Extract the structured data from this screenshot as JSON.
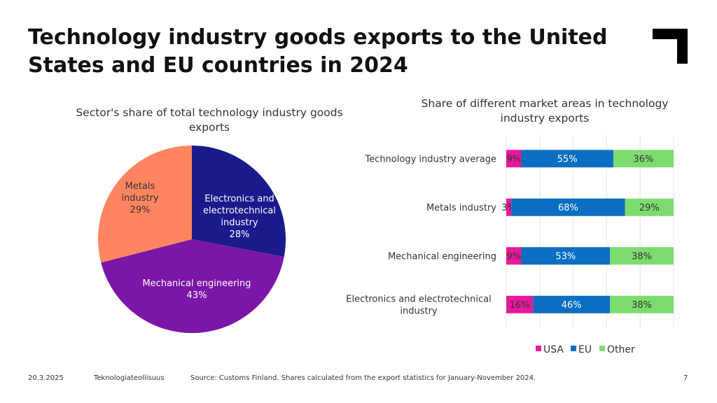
{
  "title": "Technology industry goods exports to the United States and EU countries in 2024",
  "pie": {
    "title": "Sector's share of total technology industry goods exports",
    "slices": [
      {
        "name": "Electronics and electrotechnical industry",
        "value": 28,
        "label": "28%",
        "color": "#1a1a8c",
        "text_color": "#ffffff"
      },
      {
        "name": "Mechanical engineering",
        "value": 43,
        "label": "43%",
        "color": "#7b16a8",
        "text_color": "#ffffff"
      },
      {
        "name": "Metals industry",
        "value": 29,
        "label": "29%",
        "color": "#ff8560",
        "text_color": "#333333"
      }
    ],
    "label_lines": {
      "electronics": [
        "Electronics and",
        "electrotechnical",
        "industry",
        "28%"
      ],
      "mechanical": [
        "Mechanical engineering",
        "43%"
      ],
      "metals": [
        "Metals",
        "industry",
        "29%"
      ]
    }
  },
  "bar": {
    "title": "Share of different market areas in technology industry exports",
    "legend": [
      "USA",
      "EU",
      "Other"
    ]
  },
  "chart_data": [
    {
      "type": "pie",
      "title": "Sector's share of total technology industry goods exports",
      "categories": [
        "Electronics and electrotechnical industry",
        "Mechanical engineering",
        "Metals industry"
      ],
      "values": [
        28,
        43,
        29
      ]
    },
    {
      "type": "bar",
      "orientation": "horizontal",
      "stacked": true,
      "title": "Share of different market areas in technology industry exports",
      "categories": [
        "Technology industry average",
        "Metals industry",
        "Mechanical engineering",
        "Electronics and electrotechnical industry"
      ],
      "category_lines": [
        [
          "Technology industry average"
        ],
        [
          "Metals industry"
        ],
        [
          "Mechanical engineering"
        ],
        [
          "Electronics and electrotechnical",
          "industry"
        ]
      ],
      "series": [
        {
          "name": "USA",
          "values": [
            9,
            3,
            9,
            16
          ],
          "labels": [
            "9%",
            "3%",
            "9%",
            "16%"
          ],
          "color": "#e8199b"
        },
        {
          "name": "EU",
          "values": [
            55,
            68,
            53,
            46
          ],
          "labels": [
            "55%",
            "68%",
            "53%",
            "46%"
          ],
          "color": "#0a6fc2"
        },
        {
          "name": "Other",
          "values": [
            36,
            29,
            38,
            38
          ],
          "labels": [
            "36%",
            "29%",
            "38%",
            "38%"
          ],
          "color": "#7ddc6f"
        }
      ],
      "xlim": [
        0,
        100
      ],
      "legend_position": "bottom"
    }
  ],
  "footer": {
    "date": "20.3.2025",
    "org": "Teknologiateollisuus",
    "source": "Source: Customs Finland. Shares calculated from the export statistics for January-November 2024.",
    "page": "7"
  },
  "logo": {
    "icon": "corner-bracket-logo",
    "color": "#000000"
  }
}
